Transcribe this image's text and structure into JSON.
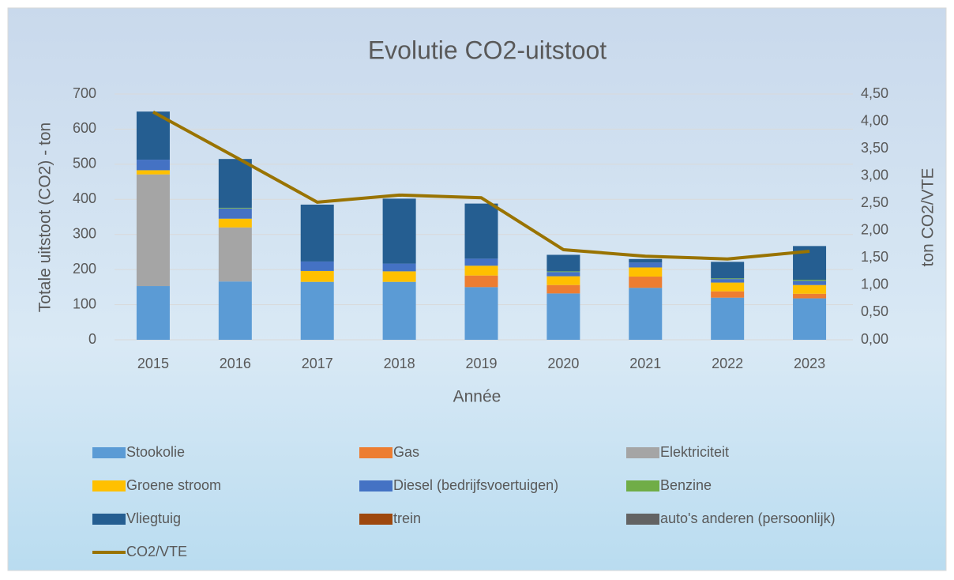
{
  "chart_data": {
    "type": "bar",
    "stacked": true,
    "title": "Evolutie CO2-uitstoot",
    "x_label": "Année",
    "y_label": "Totale uitstoot (CO2) - ton",
    "y2_label": "ton CO2/VTE",
    "categories": [
      "2015",
      "2016",
      "2017",
      "2018",
      "2019",
      "2020",
      "2021",
      "2022",
      "2023"
    ],
    "series": [
      {
        "name": "Stookolie",
        "color": "#5b9bd5",
        "values": [
          153,
          166,
          165,
          165,
          150,
          132,
          148,
          120,
          118
        ]
      },
      {
        "name": "Gas",
        "color": "#ed7d31",
        "values": [
          0,
          0,
          0,
          0,
          33,
          24,
          32,
          18,
          13
        ]
      },
      {
        "name": "Elektriciteit",
        "color": "#a5a5a5",
        "values": [
          318,
          154,
          0,
          0,
          0,
          0,
          0,
          0,
          0
        ]
      },
      {
        "name": "Groene stroom",
        "color": "#ffc000",
        "values": [
          12,
          25,
          31,
          30,
          28,
          25,
          26,
          25,
          25
        ]
      },
      {
        "name": "Diesel (bedrijfsvoertuigen)",
        "color": "#4472c4",
        "values": [
          30,
          29,
          27,
          22,
          20,
          12,
          14,
          10,
          12
        ]
      },
      {
        "name": "Benzine",
        "color": "#70ad47",
        "values": [
          0,
          2,
          0,
          0,
          0,
          2,
          0,
          2,
          3
        ]
      },
      {
        "name": "Vliegtuig",
        "color": "#255e91",
        "values": [
          137,
          139,
          162,
          185,
          157,
          47,
          10,
          47,
          96
        ]
      },
      {
        "name": "trein",
        "color": "#9e480e",
        "values": [
          0,
          0,
          0,
          0,
          0,
          0,
          0,
          0,
          0
        ]
      },
      {
        "name": "auto's anderen (persoonlijk)",
        "color": "#636363",
        "values": [
          0,
          0,
          0,
          0,
          0,
          0,
          0,
          0,
          0
        ]
      },
      {
        "name": "CO2/VTE",
        "type": "line",
        "axis": "y2",
        "color": "#997300",
        "values": [
          4.17,
          3.35,
          2.52,
          2.65,
          2.6,
          1.65,
          1.53,
          1.48,
          1.62
        ]
      }
    ],
    "ylim": [
      0,
      700
    ],
    "yticks": [
      0,
      100,
      200,
      300,
      400,
      500,
      600,
      700
    ],
    "y2lim": [
      0,
      4.5
    ],
    "y2ticks": [
      {
        "value": 0,
        "label": "0,00"
      },
      {
        "value": 0.5,
        "label": "0,50"
      },
      {
        "value": 1,
        "label": "1,00"
      },
      {
        "value": 1.5,
        "label": "1,50"
      },
      {
        "value": 2,
        "label": "2,00"
      },
      {
        "value": 2.5,
        "label": "2,50"
      },
      {
        "value": 3,
        "label": "3,00"
      },
      {
        "value": 3.5,
        "label": "3,50"
      },
      {
        "value": 4,
        "label": "4,00"
      },
      {
        "value": 4.5,
        "label": "4,50"
      }
    ],
    "grid": true,
    "legend": "bottom"
  }
}
